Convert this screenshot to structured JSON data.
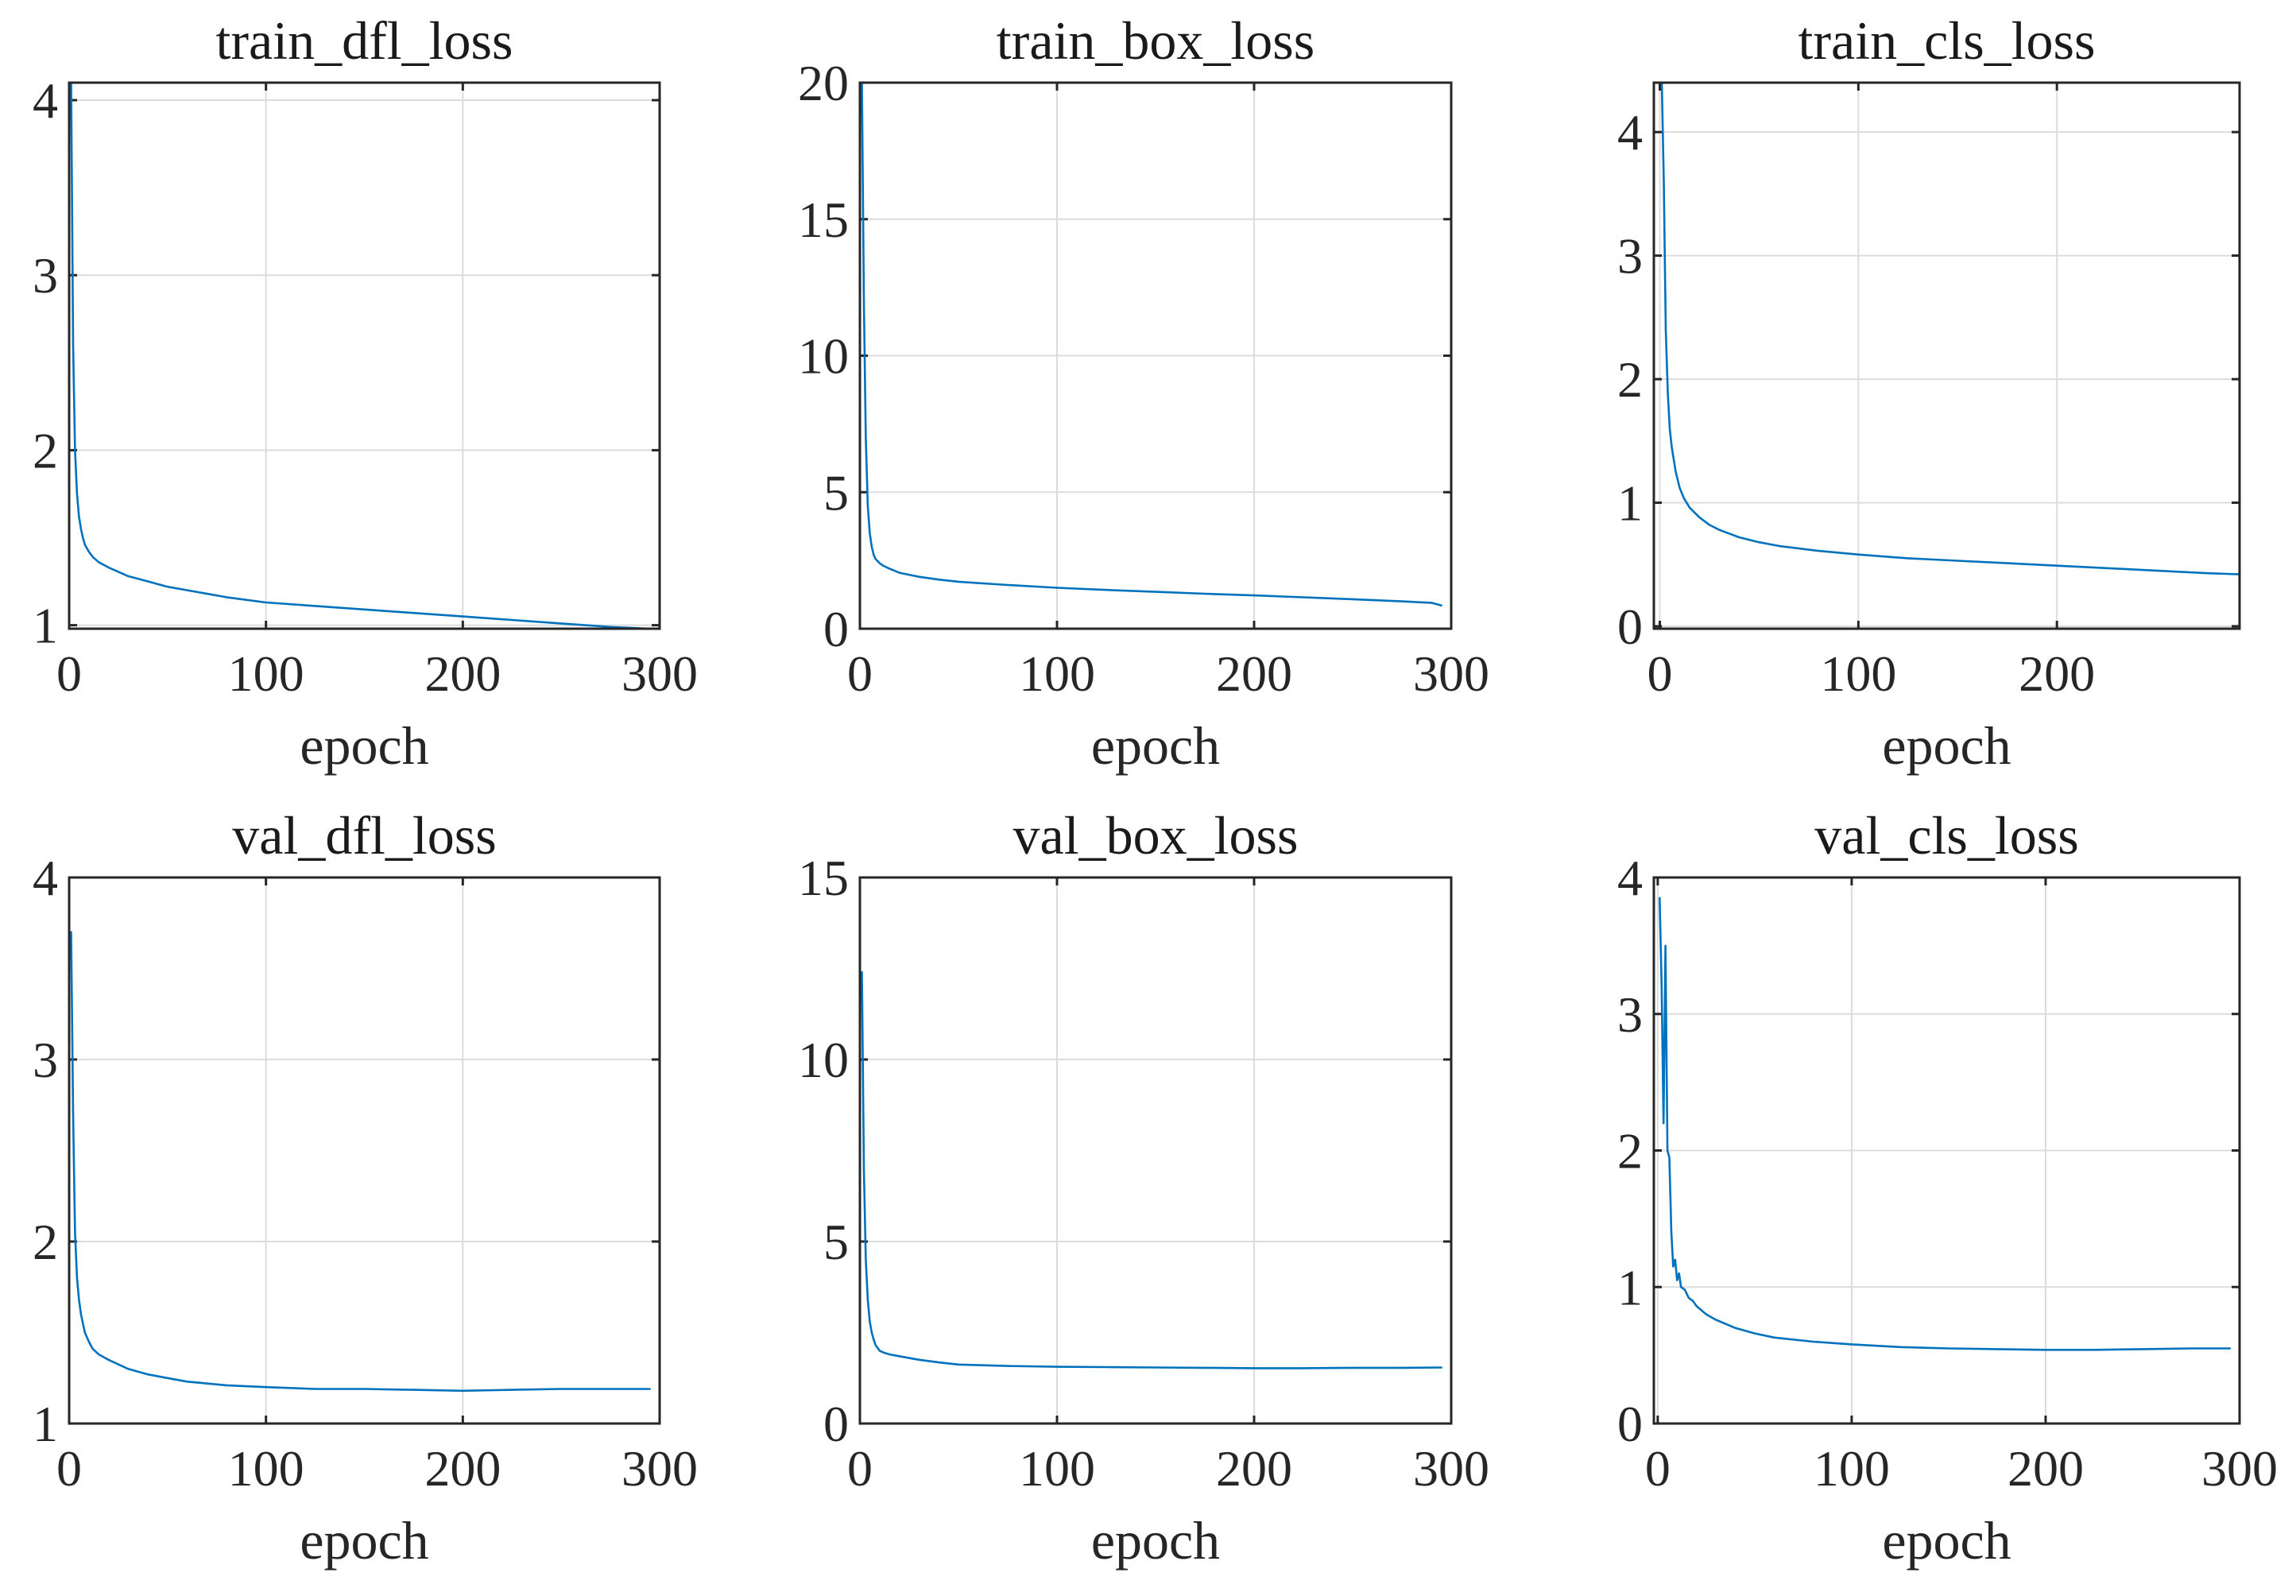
{
  "colors": {
    "line": "#0072BD",
    "grid": "#dcdcdc",
    "axis": "#262626"
  },
  "chart_data": [
    {
      "type": "line",
      "title": "train_dfl_loss",
      "xlabel": "epoch",
      "ylabel": "",
      "xlim": [
        0,
        300
      ],
      "ylim": [
        0.98,
        4.1
      ],
      "xticks": [
        0,
        100,
        200,
        300
      ],
      "yticks": [
        1,
        2,
        3,
        4
      ],
      "xtick_labels": [
        "0",
        "100",
        "200",
        "300"
      ],
      "ytick_labels": [
        "1",
        "2",
        "3",
        "4"
      ],
      "grid": true,
      "series": [
        {
          "name": "train_dfl_loss",
          "x": [
            1,
            2,
            3,
            4,
            5,
            6,
            7,
            8,
            10,
            12,
            15,
            20,
            30,
            40,
            50,
            60,
            80,
            100,
            125,
            150,
            175,
            200,
            225,
            250,
            275,
            295
          ],
          "y": [
            4.1,
            2.6,
            2.0,
            1.75,
            1.62,
            1.55,
            1.5,
            1.46,
            1.42,
            1.39,
            1.36,
            1.33,
            1.28,
            1.25,
            1.22,
            1.2,
            1.16,
            1.13,
            1.11,
            1.09,
            1.07,
            1.05,
            1.03,
            1.01,
            0.99,
            0.98
          ]
        }
      ]
    },
    {
      "type": "line",
      "title": "train_box_loss",
      "xlabel": "epoch",
      "ylabel": "",
      "xlim": [
        0,
        300
      ],
      "ylim": [
        0,
        20
      ],
      "xticks": [
        0,
        100,
        200,
        300
      ],
      "yticks": [
        0,
        5,
        10,
        15,
        20
      ],
      "xtick_labels": [
        "0",
        "100",
        "200",
        "300"
      ],
      "ytick_labels": [
        "0",
        "5",
        "10",
        "15",
        "20"
      ],
      "grid": true,
      "series": [
        {
          "name": "train_box_loss",
          "x": [
            1,
            2,
            3,
            4,
            5,
            6,
            7,
            8,
            10,
            12,
            15,
            20,
            30,
            40,
            50,
            75,
            100,
            125,
            150,
            175,
            200,
            225,
            250,
            275,
            290,
            295
          ],
          "y": [
            20,
            12,
            7,
            4.5,
            3.5,
            3.0,
            2.7,
            2.55,
            2.4,
            2.3,
            2.2,
            2.05,
            1.9,
            1.8,
            1.72,
            1.6,
            1.5,
            1.42,
            1.35,
            1.28,
            1.22,
            1.15,
            1.08,
            1.0,
            0.95,
            0.85
          ]
        }
      ]
    },
    {
      "type": "line",
      "title": "train_cls_loss",
      "xlabel": "epoch",
      "ylabel": "",
      "xlim": [
        -3,
        292
      ],
      "ylim": [
        -0.02,
        4.4
      ],
      "xticks": [
        0,
        100,
        200
      ],
      "yticks": [
        0,
        1,
        2,
        3,
        4
      ],
      "xtick_labels": [
        "0",
        "100",
        "200"
      ],
      "ytick_labels": [
        "0",
        "1",
        "2",
        "3",
        "4"
      ],
      "grid": true,
      "series": [
        {
          "name": "train_cls_loss",
          "x": [
            1,
            2,
            3,
            4,
            5,
            6,
            7,
            8,
            10,
            12,
            15,
            20,
            25,
            30,
            40,
            50,
            60,
            80,
            100,
            125,
            150,
            175,
            200,
            225,
            250,
            275,
            292
          ],
          "y": [
            4.4,
            3.6,
            2.4,
            1.9,
            1.6,
            1.45,
            1.35,
            1.25,
            1.12,
            1.04,
            0.96,
            0.88,
            0.82,
            0.78,
            0.72,
            0.68,
            0.65,
            0.61,
            0.58,
            0.55,
            0.53,
            0.51,
            0.49,
            0.47,
            0.45,
            0.43,
            0.42
          ]
        }
      ]
    },
    {
      "type": "line",
      "title": "val_dfl_loss",
      "xlabel": "epoch",
      "ylabel": "",
      "xlim": [
        0,
        300
      ],
      "ylim": [
        1,
        4
      ],
      "xticks": [
        0,
        100,
        200,
        300
      ],
      "yticks": [
        1,
        2,
        3,
        4
      ],
      "xtick_labels": [
        "0",
        "100",
        "200",
        "300"
      ],
      "ytick_labels": [
        "1",
        "2",
        "3",
        "4"
      ],
      "grid": true,
      "series": [
        {
          "name": "val_dfl_loss",
          "x": [
            1,
            2,
            3,
            4,
            5,
            6,
            7,
            8,
            10,
            12,
            15,
            20,
            30,
            40,
            50,
            60,
            80,
            100,
            125,
            150,
            175,
            200,
            225,
            250,
            275,
            295
          ],
          "y": [
            3.7,
            2.7,
            2.05,
            1.8,
            1.68,
            1.6,
            1.55,
            1.5,
            1.45,
            1.41,
            1.38,
            1.35,
            1.3,
            1.27,
            1.25,
            1.23,
            1.21,
            1.2,
            1.19,
            1.19,
            1.185,
            1.18,
            1.185,
            1.19,
            1.19,
            1.19
          ]
        }
      ]
    },
    {
      "type": "line",
      "title": "val_box_loss",
      "xlabel": "epoch",
      "ylabel": "",
      "xlim": [
        0,
        300
      ],
      "ylim": [
        0,
        15
      ],
      "xticks": [
        0,
        100,
        200,
        300
      ],
      "yticks": [
        0,
        5,
        10,
        15
      ],
      "xtick_labels": [
        "0",
        "100",
        "200",
        "300"
      ],
      "ytick_labels": [
        "0",
        "5",
        "10",
        "15"
      ],
      "grid": true,
      "series": [
        {
          "name": "val_box_loss",
          "x": [
            1,
            2,
            3,
            4,
            5,
            6,
            7,
            8,
            10,
            12,
            15,
            20,
            30,
            40,
            50,
            75,
            100,
            125,
            150,
            175,
            200,
            225,
            250,
            275,
            295
          ],
          "y": [
            12.4,
            7,
            4.5,
            3.4,
            2.8,
            2.5,
            2.3,
            2.15,
            2.0,
            1.95,
            1.9,
            1.85,
            1.75,
            1.68,
            1.62,
            1.58,
            1.56,
            1.55,
            1.54,
            1.53,
            1.52,
            1.52,
            1.53,
            1.53,
            1.54
          ]
        }
      ]
    },
    {
      "type": "line",
      "title": "val_cls_loss",
      "xlabel": "epoch",
      "ylabel": "",
      "xlim": [
        -2,
        300
      ],
      "ylim": [
        0,
        4
      ],
      "xticks": [
        0,
        100,
        200,
        300
      ],
      "yticks": [
        0,
        1,
        2,
        3,
        4
      ],
      "xtick_labels": [
        "0",
        "100",
        "200",
        "300"
      ],
      "ytick_labels": [
        "0",
        "1",
        "2",
        "3",
        "4"
      ],
      "grid": true,
      "series": [
        {
          "name": "val_cls_loss",
          "x": [
            1,
            2,
            3,
            4,
            5,
            6,
            7,
            8,
            9,
            10,
            11,
            12,
            14,
            16,
            18,
            20,
            25,
            30,
            40,
            50,
            60,
            80,
            100,
            125,
            150,
            175,
            200,
            225,
            250,
            275,
            295
          ],
          "y": [
            3.85,
            3.2,
            2.2,
            3.5,
            2.0,
            1.95,
            1.4,
            1.15,
            1.2,
            1.05,
            1.1,
            1.0,
            0.98,
            0.92,
            0.9,
            0.86,
            0.8,
            0.76,
            0.7,
            0.66,
            0.63,
            0.6,
            0.58,
            0.56,
            0.55,
            0.545,
            0.54,
            0.54,
            0.545,
            0.55,
            0.55
          ]
        }
      ]
    }
  ]
}
